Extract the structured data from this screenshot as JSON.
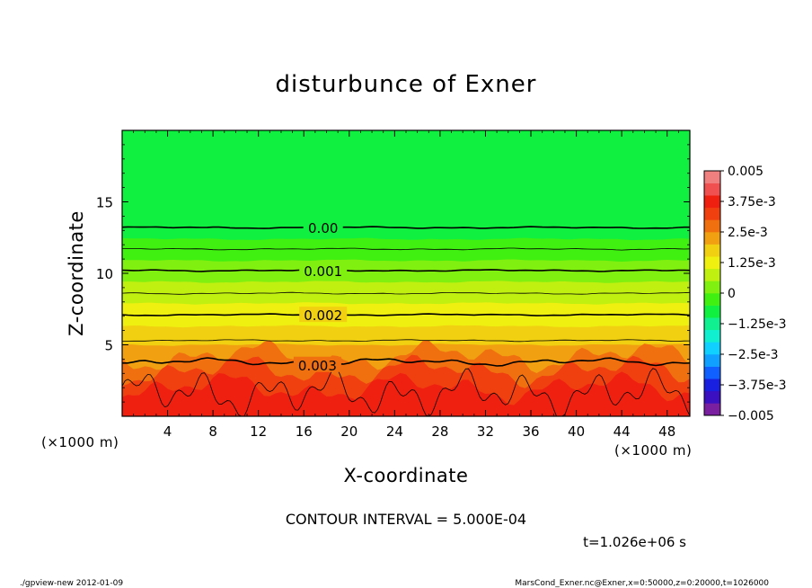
{
  "chart_data": {
    "type": "heatmap",
    "title": "disturbunce of Exner",
    "xlabel": "X-coordinate",
    "ylabel": "Z-coordinate",
    "x_unit": "(×1000 m)",
    "y_unit": "(×1000 m)",
    "xlim": [
      0,
      50
    ],
    "ylim": [
      0,
      20
    ],
    "x_ticks": [
      4,
      8,
      12,
      16,
      20,
      24,
      28,
      32,
      36,
      40,
      44,
      48
    ],
    "y_ticks": [
      5,
      10,
      15
    ],
    "contour_labels": [
      {
        "text": "0.00",
        "x": 17.7,
        "z": 13.2
      },
      {
        "text": "0.001",
        "x": 17.7,
        "z": 10.2
      },
      {
        "text": "0.002",
        "x": 17.7,
        "z": 7.1
      },
      {
        "text": "0.003",
        "x": 17.2,
        "z": 3.6
      }
    ],
    "contour_levels": [
      {
        "value": 0.0,
        "z": 13.2,
        "bold": true
      },
      {
        "value": 0.0005,
        "z": 11.7,
        "bold": false
      },
      {
        "value": 0.001,
        "z": 10.2,
        "bold": true
      },
      {
        "value": 0.0015,
        "z": 8.6,
        "bold": false
      },
      {
        "value": 0.002,
        "z": 7.1,
        "bold": true
      },
      {
        "value": 0.0025,
        "z": 5.3,
        "bold": false
      },
      {
        "value": 0.003,
        "z": 3.8,
        "bold": true
      }
    ],
    "colorbar": {
      "min": -0.005,
      "max": 0.005,
      "ticks": [
        "0.005",
        "3.75e-3",
        "2.5e-3",
        "1.25e-3",
        "0",
        "−1.25e-3",
        "−2.5e-3",
        "−3.75e-3",
        "−0.005"
      ],
      "colors": [
        "#7a1fa0",
        "#3a10c0",
        "#1a20e0",
        "#1060ff",
        "#10a0ff",
        "#10d0ff",
        "#10f0d0",
        "#10f090",
        "#10f040",
        "#40f010",
        "#80f010",
        "#c0f010",
        "#f0f010",
        "#f0d010",
        "#f0a010",
        "#f07010",
        "#f04010",
        "#f02010",
        "#f05050",
        "#f08080"
      ]
    },
    "interval_text": "CONTOUR INTERVAL = 5.000E-04",
    "time_text": "t=1.026e+06 s"
  },
  "footer": {
    "left": "./gpview-new  2012-01-09",
    "right": "MarsCond_Exner.nc@Exner,x=0:50000,z=0:20000,t=1026000"
  }
}
